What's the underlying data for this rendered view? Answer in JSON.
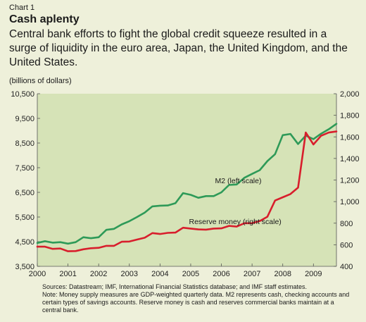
{
  "header": {
    "chart_label": "Chart 1",
    "title": "Cash aplenty",
    "subtitle": "Central bank efforts to fight the global credit squeeze resulted in a surge of liquidity in the euro area, Japan, the United Kingdom, and the United States.",
    "unit": "(billions of dollars)"
  },
  "footer": {
    "sources": "Sources: Datastream;  IMF, International Financial Statistics database; and IMF staff estimates.",
    "note": "Note: Money supply measures are GDP-weighted quarterly data. M2 represents cash, checking accounts and certain types of savings accounts. Reserve money is cash and reserves commercial banks maintain at a central bank."
  },
  "colors": {
    "plot_background": "#d6e3b7",
    "m2_line": "#2e9a58",
    "reserve_line": "#d81e2c",
    "page_background": "#eef0da"
  },
  "chart_data": {
    "type": "line",
    "x_ticks": [
      "2000",
      "2001",
      "2002",
      "2003",
      "2004",
      "2005",
      "2006",
      "2007",
      "2008",
      "2009"
    ],
    "xlim": [
      2000,
      2009.75
    ],
    "y_left": {
      "lim": [
        3500,
        10500
      ],
      "ticks": [
        "3,500",
        "4,500",
        "5,500",
        "6,500",
        "7,500",
        "8,500",
        "9,500",
        "10,500"
      ]
    },
    "y_right": {
      "lim": [
        400,
        2000
      ],
      "ticks": [
        "400",
        "600",
        "800",
        "1,000",
        "1,200",
        "1,400",
        "1,600",
        "1,800",
        "2,000"
      ]
    },
    "series": [
      {
        "name": "M2 (left scale)",
        "axis": "left",
        "x": [
          2000,
          2000.25,
          2000.5,
          2000.75,
          2001,
          2001.25,
          2001.5,
          2001.75,
          2002,
          2002.25,
          2002.5,
          2002.75,
          2003,
          2003.25,
          2003.5,
          2003.75,
          2004,
          2004.25,
          2004.5,
          2004.75,
          2005,
          2005.25,
          2005.5,
          2005.75,
          2006,
          2006.25,
          2006.5,
          2006.75,
          2007,
          2007.25,
          2007.5,
          2007.75,
          2008,
          2008.25,
          2008.5,
          2008.75,
          2009,
          2009.25,
          2009.5,
          2009.75
        ],
        "values": [
          4450,
          4520,
          4460,
          4480,
          4420,
          4480,
          4680,
          4640,
          4680,
          4980,
          5020,
          5200,
          5330,
          5500,
          5680,
          5930,
          5960,
          5970,
          6060,
          6470,
          6400,
          6280,
          6350,
          6350,
          6500,
          6800,
          6820,
          7090,
          7250,
          7400,
          7770,
          8050,
          8820,
          8870,
          8460,
          8800,
          8660,
          8880,
          9060,
          9280
        ]
      },
      {
        "name": "Reserve money (right scale)",
        "axis": "right",
        "x": [
          2000,
          2000.25,
          2000.5,
          2000.75,
          2001,
          2001.25,
          2001.5,
          2001.75,
          2002,
          2002.25,
          2002.5,
          2002.75,
          2003,
          2003.25,
          2003.5,
          2003.75,
          2004,
          2004.25,
          2004.5,
          2004.75,
          2005,
          2005.25,
          2005.5,
          2005.75,
          2006,
          2006.25,
          2006.5,
          2006.75,
          2007,
          2007.25,
          2007.5,
          2007.75,
          2008,
          2008.25,
          2008.5,
          2008.75,
          2009,
          2009.25,
          2009.5,
          2009.75
        ],
        "values": [
          582,
          582,
          562,
          565,
          540,
          542,
          558,
          568,
          572,
          590,
          590,
          628,
          630,
          648,
          665,
          708,
          700,
          710,
          713,
          758,
          750,
          742,
          740,
          750,
          752,
          775,
          768,
          800,
          800,
          820,
          860,
          1010,
          1040,
          1070,
          1130,
          1640,
          1530,
          1610,
          1640,
          1650
        ]
      }
    ],
    "annotations": [
      {
        "text": "M2 (left scale)",
        "x": 2006.55,
        "y_left": 6870
      },
      {
        "text": "Reserve money (right scale)",
        "x": 2006.45,
        "y_left": 5220
      }
    ],
    "grid": false
  }
}
